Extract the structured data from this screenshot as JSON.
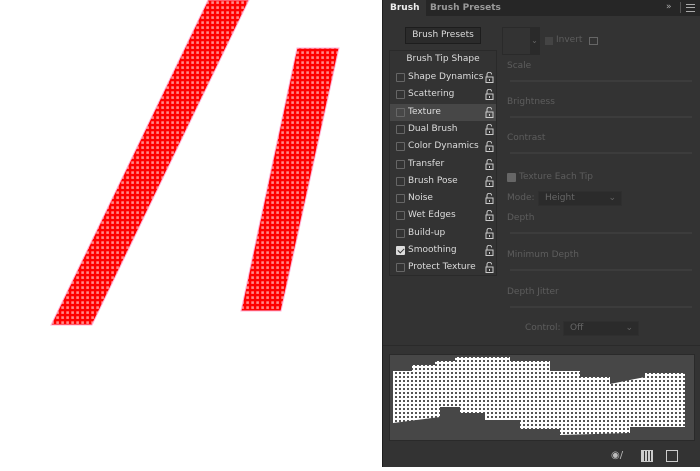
{
  "tabs": [
    {
      "label": "Brush",
      "active": true
    },
    {
      "label": "Brush Presets",
      "active": false
    }
  ],
  "brush_presets_button": "Brush Presets",
  "brush_tip_shape": "Brush Tip Shape",
  "options": [
    {
      "label": "Shape Dynamics",
      "checked": false
    },
    {
      "label": "Scattering",
      "checked": false
    },
    {
      "label": "Texture",
      "checked": false,
      "selected": true
    },
    {
      "label": "Dual Brush",
      "checked": false
    },
    {
      "label": "Color Dynamics",
      "checked": false
    },
    {
      "label": "Transfer",
      "checked": false
    },
    {
      "label": "Brush Pose",
      "checked": false
    },
    {
      "label": "Noise",
      "checked": false
    },
    {
      "label": "Wet Edges",
      "checked": false
    },
    {
      "label": "Build-up",
      "checked": false
    },
    {
      "label": "Smoothing",
      "checked": true
    },
    {
      "label": "Protect Texture",
      "checked": false
    }
  ],
  "texture": {
    "invert": "Invert",
    "scale": "Scale",
    "brightness": "Brightness",
    "contrast": "Contrast",
    "texture_each_tip": "Texture Each Tip",
    "mode_label": "Mode:",
    "mode_value": "Height",
    "depth": "Depth",
    "minimum_depth": "Minimum Depth",
    "depth_jitter": "Depth Jitter",
    "control_label": "Control:",
    "control_value": "Off"
  },
  "colors": {
    "stroke": "#ff0000",
    "panel": "#333333"
  }
}
